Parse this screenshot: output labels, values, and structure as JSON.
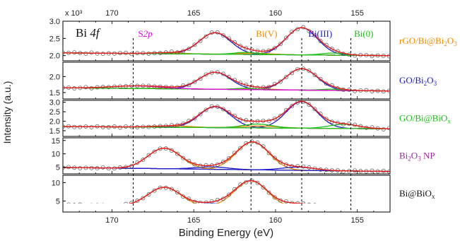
{
  "chart_data": {
    "type": "line",
    "title": "Bi 4f",
    "xlabel": "Binding Energy (eV)",
    "ylabel": "Intensity (a.u.)",
    "x_multiplier_label": "x 10³",
    "xlim": [
      173,
      153
    ],
    "x_reversed": true,
    "x_ticks": [
      170,
      165,
      160,
      155
    ],
    "reference_lines_ev": [
      168.7,
      161.5,
      158.4,
      155.4
    ],
    "peak_labels": [
      {
        "text": "S2p",
        "x": 168.4,
        "color": "#e000e0"
      },
      {
        "text": "Bi(V)",
        "x": 161.2,
        "color": "#f08a00"
      },
      {
        "text": "Bi(III)",
        "x": 158.0,
        "color": "#1a1acc"
      },
      {
        "text": "Bi(0)",
        "x": 155.2,
        "color": "#17c017"
      }
    ],
    "colors": {
      "raw": "#555555",
      "envelope": "#e02020",
      "background": "#000000",
      "bi3": "#2020d0",
      "bi5": "#f08a00",
      "bi0": "#20c020",
      "s2p": "#e000e0"
    },
    "panels": [
      {
        "name": "rGO/Bi@Bi2O3",
        "label_main": "rGO/Bi@Bi",
        "label_sub1": "2",
        "label_mid": "O",
        "label_sub2": "3",
        "label_color": "#f08a00",
        "ylim": [
          1.85,
          3.0
        ],
        "y_ticks": [
          2.0,
          2.5,
          3.0
        ],
        "y_tick_labels": [
          "2.0",
          "2.5",
          "3.0"
        ],
        "baseline": [
          2.08,
          2.0
        ],
        "peaks": [
          {
            "type": "bi3",
            "center": 158.4,
            "amp": 0.79,
            "sigma": 0.95
          },
          {
            "type": "bi3",
            "center": 163.7,
            "amp": 0.62,
            "sigma": 0.95
          },
          {
            "type": "bi5",
            "center": 161.3,
            "amp": 0.04,
            "sigma": 1.0
          },
          {
            "type": "bi5",
            "center": 166.6,
            "amp": 0.03,
            "sigma": 1.0
          },
          {
            "type": "bi0",
            "center": 156.5,
            "amp": 0.06,
            "sigma": 0.7
          },
          {
            "type": "bi0",
            "center": 161.8,
            "amp": 0.06,
            "sigma": 0.7
          }
        ]
      },
      {
        "name": "GO/Bi2O3",
        "label_main": "GO/Bi",
        "label_sub1": "2",
        "label_mid": "O",
        "label_sub2": "3",
        "label_color": "#1a1acc",
        "ylim": [
          1.3,
          2.45
        ],
        "y_ticks": [
          1.5,
          2.0
        ],
        "y_tick_labels": [
          "1.5",
          "2.0"
        ],
        "baseline": [
          1.65,
          1.55
        ],
        "peaks": [
          {
            "type": "bi3",
            "center": 158.4,
            "amp": 0.67,
            "sigma": 0.95
          },
          {
            "type": "bi3",
            "center": 163.7,
            "amp": 0.53,
            "sigma": 0.95
          },
          {
            "type": "bi5",
            "center": 161.3,
            "amp": 0.03,
            "sigma": 1.0
          },
          {
            "type": "bi5",
            "center": 166.6,
            "amp": 0.02,
            "sigma": 1.0
          },
          {
            "type": "bi0",
            "center": 156.5,
            "amp": 0.04,
            "sigma": 0.7
          },
          {
            "type": "bi0",
            "center": 161.8,
            "amp": 0.04,
            "sigma": 0.7
          },
          {
            "type": "s2p",
            "center": 168.5,
            "amp": 0.08,
            "sigma": 1.5
          }
        ]
      },
      {
        "name": "GO/Bi@BiOx",
        "label_main": "GO/Bi@BiO",
        "label_sub1": "x",
        "label_mid": "",
        "label_sub2": "",
        "label_color": "#17c017",
        "ylim": [
          1.2,
          3.1
        ],
        "y_ticks": [
          1.5,
          2.0,
          2.5,
          3.0
        ],
        "y_tick_labels": [
          "1.5",
          "2.0",
          "2.5",
          "3.0"
        ],
        "baseline": [
          1.72,
          1.6
        ],
        "peaks": [
          {
            "type": "bi3",
            "center": 158.4,
            "amp": 1.4,
            "sigma": 0.95
          },
          {
            "type": "bi3",
            "center": 163.7,
            "amp": 1.1,
            "sigma": 0.95
          },
          {
            "type": "bi5",
            "center": 161.0,
            "amp": 0.1,
            "sigma": 1.2
          },
          {
            "type": "bi5",
            "center": 166.3,
            "amp": 0.07,
            "sigma": 1.2
          },
          {
            "type": "bi0",
            "center": 155.8,
            "amp": 0.22,
            "sigma": 0.9
          },
          {
            "type": "bi0",
            "center": 161.1,
            "amp": 0.2,
            "sigma": 0.9
          }
        ]
      },
      {
        "name": "Bi2O3 NP",
        "label_main": "Bi",
        "label_sub1": "2",
        "label_mid": "O",
        "label_sub2": "3",
        "label_tail": " NP",
        "label_color": "#9a2aa0",
        "ylim": [
          2.5,
          16
        ],
        "y_ticks": [
          5,
          10,
          15
        ],
        "y_tick_labels": [
          "5",
          "10",
          "15"
        ],
        "baseline": [
          4.9,
          3.4
        ],
        "peaks": [
          {
            "type": "bi5",
            "center": 161.4,
            "amp": 10.4,
            "sigma": 1.0
          },
          {
            "type": "bi5",
            "center": 166.8,
            "amp": 7.7,
            "sigma": 1.0
          },
          {
            "type": "bi3",
            "center": 158.6,
            "amp": 1.2,
            "sigma": 1.0
          },
          {
            "type": "bi3",
            "center": 163.9,
            "amp": 0.9,
            "sigma": 1.0
          }
        ]
      },
      {
        "name": "Bi@BiOx",
        "label_main": "Bi@BiO",
        "label_sub1": "x",
        "label_mid": "",
        "label_sub2": "",
        "label_color": "#111111",
        "ylim": [
          2,
          12
        ],
        "y_ticks": [
          5,
          10
        ],
        "y_tick_labels": [
          "5",
          "10"
        ],
        "baseline": [
          3.9,
          3.0
        ],
        "peaks": [
          {
            "type": "bi5",
            "center": 161.5,
            "amp": 7.1,
            "sigma": 1.0
          },
          {
            "type": "bi5",
            "center": 166.8,
            "amp": 5.1,
            "sigma": 1.0
          },
          {
            "type": "bi3",
            "center": 158.6,
            "amp": 1.0,
            "sigma": 1.0
          },
          {
            "type": "bi3",
            "center": 163.9,
            "amp": 0.8,
            "sigma": 1.0
          }
        ]
      }
    ]
  }
}
